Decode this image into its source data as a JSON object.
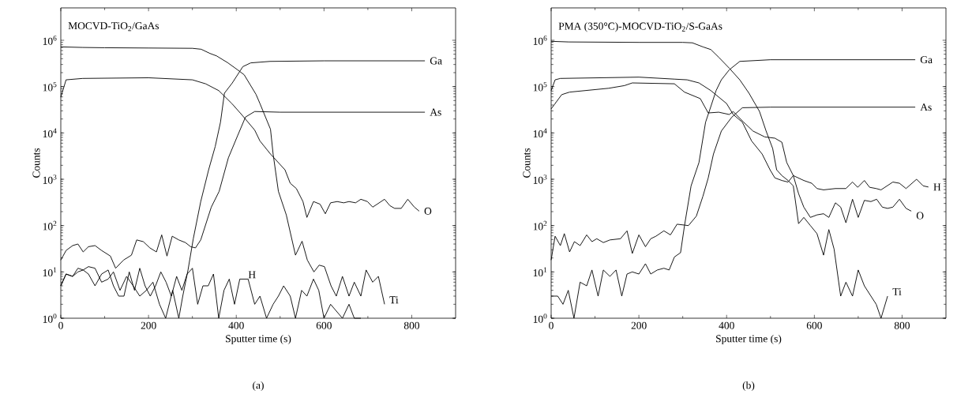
{
  "chart_data": [
    {
      "type": "line",
      "title": "MOCVD-TiO$_{2}$/GaAs",
      "xlabel": "Sputter time (s)",
      "ylabel": "Counts",
      "annotations": [
        "(a)"
      ],
      "log": "y",
      "marker": "none",
      "legend": "right",
      "xlim": [
        0,
        900
      ],
      "xticks": [
        0,
        200,
        400,
        600,
        800
      ],
      "ylim": [
        1,
        5000000
      ],
      "yticks": [
        {
          "value": 1,
          "label": "10$^{0}$"
        },
        {
          "value": 10,
          "label": "10$^{1}$"
        },
        {
          "value": 100,
          "label": "10$^{2}$"
        },
        {
          "value": 1000,
          "label": "10$^{3}$"
        },
        {
          "value": 10000,
          "label": "10$^{4}$"
        },
        {
          "value": 100000,
          "label": "10$^{5}$"
        },
        {
          "value": 1000000,
          "label": "10$^{6}$"
        }
      ],
      "series": [
        {
          "name": "Ga",
          "color": "#000000",
          "x": [
            0,
            12,
            27,
            39,
            51,
            63,
            78,
            93,
            108,
            120,
            135,
            150,
            165,
            180,
            195,
            210,
            225,
            239,
            255,
            269,
            278,
            290,
            302,
            319,
            337,
            352,
            364,
            373,
            391,
            415,
            433,
            477,
            600,
            830
          ],
          "values": [
            5,
            9,
            8,
            10,
            11,
            13,
            12,
            6,
            7,
            10,
            4,
            8,
            5,
            3,
            4,
            6,
            2,
            1,
            4,
            1,
            3,
            11,
            52,
            330,
            1600,
            5100,
            17000,
            72000,
            120000,
            270000,
            325000,
            350000,
            360000,
            360000
          ]
        },
        {
          "name": "As",
          "color": "#000000",
          "x": [
            0,
            12,
            27,
            39,
            51,
            63,
            78,
            93,
            113,
            125,
            143,
            161,
            173,
            188,
            203,
            218,
            230,
            242,
            254,
            269,
            284,
            296,
            307,
            319,
            343,
            361,
            382,
            403,
            421,
            442,
            500,
            650,
            830
          ],
          "values": [
            18,
            29,
            37,
            40,
            27,
            35,
            37,
            29,
            22,
            12,
            18,
            23,
            49,
            45,
            33,
            27,
            63,
            22,
            59,
            49,
            43,
            35,
            33,
            49,
            250,
            550,
            2900,
            8700,
            22000,
            29000,
            28000,
            28000,
            28000
          ]
        },
        {
          "name": "O",
          "color": "#000000",
          "x": [
            0,
            12,
            50,
            200,
            300,
            330,
            360,
            390,
            412,
            442,
            454,
            478,
            511,
            523,
            537,
            552,
            561,
            576,
            591,
            603,
            615,
            630,
            645,
            657,
            672,
            684,
            699,
            711,
            738,
            750,
            761,
            776,
            791,
            806,
            817
          ],
          "values": [
            59000,
            140000,
            150000,
            155000,
            140000,
            115000,
            82000,
            43000,
            25000,
            11500,
            6700,
            3500,
            1600,
            820,
            630,
            330,
            150,
            330,
            290,
            180,
            310,
            330,
            310,
            330,
            310,
            370,
            330,
            250,
            370,
            270,
            235,
            235,
            370,
            250,
            205
          ]
        },
        {
          "name": "H",
          "color": "#000000",
          "x": [
            0,
            12,
            27,
            39,
            51,
            63,
            78,
            93,
            108,
            120,
            132,
            144,
            156,
            168,
            180,
            192,
            204,
            216,
            228,
            240,
            252,
            264,
            276,
            288,
            300,
            312,
            324,
            336,
            348,
            360,
            372,
            384,
            396,
            408,
            418,
            427,
            442,
            454,
            469,
            484,
            496,
            508,
            523,
            535,
            549,
            561,
            576,
            588,
            600,
            615,
            642,
            657,
            669,
            684
          ],
          "values": [
            5,
            9,
            8,
            12,
            11,
            9,
            5,
            9,
            11,
            5,
            3,
            3,
            10,
            4,
            12,
            5,
            3,
            5,
            10,
            6,
            3,
            8,
            4,
            9,
            12,
            2,
            5,
            5,
            9,
            1,
            4,
            7,
            2,
            7,
            7,
            7,
            2,
            3,
            1,
            2,
            3,
            5,
            3,
            1,
            4,
            3,
            7,
            4,
            1,
            2,
            1,
            2,
            1,
            1
          ]
        },
        {
          "name": "Ti",
          "color": "#000000",
          "x": [
            0,
            50,
            100,
            200,
            300,
            320,
            340,
            355,
            380,
            403,
            418,
            445,
            454,
            478,
            484,
            496,
            514,
            535,
            550,
            562,
            577,
            589,
            601,
            616,
            628,
            642,
            657,
            669,
            684,
            696,
            711,
            724,
            738
          ],
          "values": [
            720000,
            700000,
            690000,
            680000,
            670000,
            640000,
            520000,
            460000,
            330000,
            230000,
            180000,
            68000,
            43000,
            12000,
            3500,
            550,
            170,
            23,
            46,
            18,
            10,
            14,
            13,
            5,
            3,
            8,
            3,
            6,
            3,
            11,
            6,
            8,
            2
          ]
        }
      ]
    },
    {
      "type": "line",
      "title": "PMA (350°C)-MOCVD-TiO$_{2}$/S-GaAs",
      "xlabel": "Sputter time (s)",
      "ylabel": "Counts",
      "annotations": [
        "(b)"
      ],
      "log": "y",
      "marker": "none",
      "legend": "right",
      "xlim": [
        0,
        900
      ],
      "xticks": [
        0,
        200,
        400,
        600,
        800
      ],
      "ylim": [
        1,
        5000000
      ],
      "yticks": [
        {
          "value": 1,
          "label": "10$^{0}$"
        },
        {
          "value": 10,
          "label": "10$^{1}$"
        },
        {
          "value": 100,
          "label": "10$^{2}$"
        },
        {
          "value": 1000,
          "label": "10$^{3}$"
        },
        {
          "value": 10000,
          "label": "10$^{4}$"
        },
        {
          "value": 100000,
          "label": "10$^{5}$"
        },
        {
          "value": 1000000,
          "label": "10$^{6}$"
        }
      ],
      "series": [
        {
          "name": "Ga",
          "color": "#000000",
          "x": [
            0,
            15,
            27,
            39,
            52,
            66,
            81,
            93,
            107,
            119,
            134,
            148,
            161,
            173,
            185,
            200,
            215,
            227,
            242,
            257,
            269,
            281,
            295,
            304,
            319,
            337,
            352,
            364,
            376,
            388,
            406,
            430,
            500,
            650,
            830
          ],
          "values": [
            3,
            3,
            2,
            4,
            1,
            6,
            5,
            11,
            3,
            11,
            8,
            11,
            3,
            9,
            10,
            9,
            15,
            9,
            11,
            12,
            11,
            21,
            26,
            100,
            720,
            2300,
            17000,
            37000,
            82000,
            140000,
            230000,
            350000,
            380000,
            380000,
            380000
          ]
        },
        {
          "name": "As",
          "color": "#000000",
          "x": [
            0,
            9,
            21,
            30,
            42,
            53,
            66,
            81,
            93,
            104,
            119,
            134,
            158,
            173,
            185,
            200,
            215,
            227,
            239,
            257,
            272,
            287,
            313,
            331,
            346,
            358,
            370,
            388,
            412,
            436,
            500,
            650,
            830
          ],
          "values": [
            18,
            59,
            37,
            67,
            27,
            45,
            37,
            63,
            45,
            52,
            43,
            49,
            52,
            77,
            25,
            63,
            35,
            52,
            59,
            77,
            63,
            107,
            100,
            160,
            430,
            1060,
            3500,
            11000,
            22000,
            35000,
            36000,
            36000,
            36000
          ]
        },
        {
          "name": "O",
          "color": "#000000",
          "x": [
            0,
            9,
            21,
            200,
            281,
            310,
            337,
            364,
            400,
            415,
            436,
            457,
            481,
            499,
            510,
            526,
            540,
            552,
            564,
            576,
            591,
            606,
            621,
            633,
            648,
            660,
            672,
            687,
            700,
            714,
            729,
            742,
            755,
            767,
            779,
            794,
            809,
            821
          ],
          "values": [
            82000,
            140000,
            150000,
            160000,
            145000,
            140000,
            120000,
            82000,
            43000,
            25000,
            17000,
            6700,
            3500,
            1600,
            1070,
            940,
            870,
            1200,
            490,
            250,
            150,
            170,
            180,
            150,
            310,
            250,
            115,
            370,
            150,
            350,
            330,
            370,
            250,
            235,
            250,
            370,
            235,
            205
          ]
        },
        {
          "name": "H",
          "color": "#000000",
          "x": [
            0,
            9,
            24,
            42,
            131,
            167,
            185,
            281,
            304,
            340,
            358,
            382,
            406,
            415,
            439,
            460,
            487,
            510,
            526,
            537,
            552,
            576,
            594,
            606,
            621,
            648,
            672,
            687,
            699,
            714,
            726,
            741,
            752,
            779,
            794,
            809,
            833,
            848,
            860
          ],
          "values": [
            33000,
            43000,
            67000,
            76000,
            92000,
            105000,
            120000,
            115000,
            76000,
            55000,
            27000,
            28000,
            25000,
            29000,
            17000,
            11000,
            8200,
            7700,
            6300,
            2300,
            1200,
            940,
            820,
            630,
            590,
            630,
            630,
            870,
            670,
            940,
            670,
            630,
            590,
            870,
            820,
            630,
            1000,
            720,
            680
          ]
        },
        {
          "name": "Ti",
          "color": "#000000",
          "x": [
            0,
            40,
            200,
            300,
            322,
            346,
            364,
            382,
            406,
            430,
            451,
            475,
            490,
            505,
            514,
            526,
            540,
            552,
            564,
            576,
            591,
            606,
            621,
            633,
            645,
            660,
            672,
            687,
            700,
            714,
            729,
            741,
            752,
            767
          ],
          "values": [
            950000,
            920000,
            900000,
            900000,
            880000,
            720000,
            630000,
            430000,
            250000,
            140000,
            72000,
            29000,
            11000,
            4600,
            1600,
            1200,
            940,
            720,
            110,
            150,
            100,
            67,
            23,
            82,
            31,
            3,
            6,
            3,
            11,
            5,
            3,
            2,
            1,
            3
          ]
        }
      ]
    }
  ]
}
